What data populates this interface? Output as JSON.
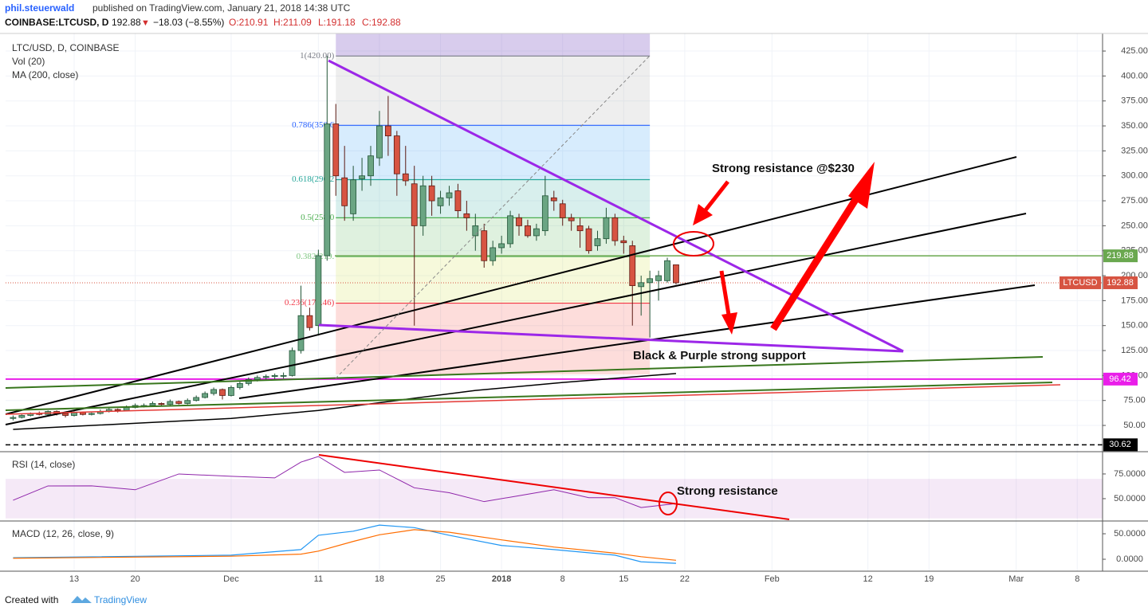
{
  "header": {
    "author": "phil.steuerwald",
    "published": "published on TradingView.com, January 21, 2018 14:38 UTC",
    "symbol": "COINBASE:LTCUSD, D",
    "last": "192.88",
    "arrow": "▼",
    "change": "−18.03 (−8.55%)",
    "open": "O:210.91",
    "high": "H:211.09",
    "low": "L:191.18",
    "close": "C:192.88"
  },
  "footer": {
    "created": "Created with",
    "brand": "TradingView"
  },
  "chart_data": {
    "type": "candlestick",
    "legend": [
      "LTC/USD, D, COINBASE",
      "Vol (20)",
      "MA (200, close)"
    ],
    "xlim": [
      4.14,
      129.9
    ],
    "xticks": [
      {
        "value": 12,
        "label": "13"
      },
      {
        "value": 19,
        "label": "20"
      },
      {
        "value": 30,
        "label": "Dec"
      },
      {
        "value": 40,
        "label": "11"
      },
      {
        "value": 47,
        "label": "18"
      },
      {
        "value": 54,
        "label": "25"
      },
      {
        "value": 61,
        "label": "2018"
      },
      {
        "value": 68,
        "label": "8"
      },
      {
        "value": 75,
        "label": "15"
      },
      {
        "value": 82,
        "label": "22"
      },
      {
        "value": 92,
        "label": "Feb"
      },
      {
        "value": 103,
        "label": "12"
      },
      {
        "value": 110,
        "label": "19"
      },
      {
        "value": 120,
        "label": "Mar"
      },
      {
        "value": 127,
        "label": "8"
      }
    ],
    "ylim": [
      23.7,
      442.6
    ],
    "yticks": [
      {
        "value": 50,
        "label": "50.00"
      },
      {
        "value": 75,
        "label": "75.00"
      },
      {
        "value": 100,
        "label": "100.00"
      },
      {
        "value": 125,
        "label": "125.00"
      },
      {
        "value": 150,
        "label": "150.00"
      },
      {
        "value": 175,
        "label": "175.00"
      },
      {
        "value": 200,
        "label": "200.00"
      },
      {
        "value": 225,
        "label": "225.00"
      },
      {
        "value": 250,
        "label": "250.00"
      },
      {
        "value": 275,
        "label": "275.00"
      },
      {
        "value": 300,
        "label": "300.00"
      },
      {
        "value": 325,
        "label": "325.00"
      },
      {
        "value": 350,
        "label": "350.00"
      },
      {
        "value": 375,
        "label": "375.00"
      },
      {
        "value": 400,
        "label": "400.00"
      },
      {
        "value": 425,
        "label": "425.00"
      }
    ],
    "grid": true,
    "up_color": "#6ba583",
    "down_color": "#d75442",
    "x": [
      5,
      6,
      7,
      8,
      9,
      10,
      11,
      12,
      13,
      14,
      15,
      16,
      17,
      18,
      19,
      20,
      21,
      22,
      23,
      24,
      25,
      26,
      27,
      28,
      29,
      30,
      31,
      32,
      33,
      34,
      35,
      36,
      37,
      38,
      39,
      40,
      41,
      42,
      43,
      44,
      45,
      46,
      47,
      48,
      49,
      50,
      51,
      52,
      53,
      54,
      55,
      56,
      57,
      58,
      59,
      60,
      61,
      62,
      63,
      64,
      65,
      66,
      67,
      68,
      69,
      70,
      71,
      72,
      73,
      74,
      75,
      76,
      77,
      78,
      79,
      80,
      81
    ],
    "candles": [
      [
        57,
        60,
        55,
        58
      ],
      [
        58,
        61,
        57,
        60
      ],
      [
        60,
        63,
        59,
        62
      ],
      [
        62,
        64,
        60,
        61
      ],
      [
        61,
        65,
        60,
        64
      ],
      [
        64,
        65,
        60,
        62
      ],
      [
        62,
        63,
        58,
        60
      ],
      [
        60,
        64,
        59,
        63
      ],
      [
        63,
        64,
        60,
        61
      ],
      [
        61,
        63,
        60,
        62
      ],
      [
        62,
        66,
        61,
        64
      ],
      [
        64,
        68,
        63,
        66
      ],
      [
        66,
        67,
        63,
        65
      ],
      [
        65,
        70,
        64,
        68
      ],
      [
        68,
        72,
        67,
        70
      ],
      [
        70,
        72,
        68,
        70
      ],
      [
        70,
        74,
        69,
        72
      ],
      [
        72,
        73,
        70,
        71
      ],
      [
        71,
        76,
        70,
        74
      ],
      [
        74,
        75,
        71,
        72
      ],
      [
        72,
        77,
        71,
        75
      ],
      [
        75,
        80,
        74,
        78
      ],
      [
        78,
        84,
        77,
        82
      ],
      [
        82,
        88,
        80,
        86
      ],
      [
        86,
        87,
        76,
        80
      ],
      [
        80,
        90,
        79,
        88
      ],
      [
        88,
        94,
        86,
        92
      ],
      [
        92,
        98,
        90,
        96
      ],
      [
        96,
        100,
        94,
        98
      ],
      [
        98,
        101,
        95,
        99
      ],
      [
        99,
        102,
        96,
        100
      ],
      [
        100,
        103,
        97,
        100
      ],
      [
        100,
        128,
        99,
        125
      ],
      [
        125,
        190,
        122,
        160
      ],
      [
        160,
        168,
        145,
        148
      ],
      [
        150,
        226,
        140,
        220
      ],
      [
        220,
        420,
        215,
        352
      ],
      [
        352,
        372,
        280,
        300
      ],
      [
        298,
        330,
        255,
        270
      ],
      [
        262,
        310,
        255,
        296
      ],
      [
        297,
        318,
        285,
        300
      ],
      [
        300,
        330,
        290,
        320
      ],
      [
        318,
        365,
        310,
        350
      ],
      [
        350,
        380,
        320,
        340
      ],
      [
        340,
        345,
        280,
        302
      ],
      [
        302,
        330,
        290,
        295
      ],
      [
        292,
        310,
        150,
        250
      ],
      [
        250,
        300,
        240,
        290
      ],
      [
        290,
        300,
        260,
        275
      ],
      [
        270,
        285,
        262,
        278
      ],
      [
        278,
        290,
        270,
        283
      ],
      [
        285,
        292,
        258,
        265
      ],
      [
        262,
        275,
        245,
        258
      ],
      [
        240,
        262,
        225,
        250
      ],
      [
        245,
        252,
        208,
        215
      ],
      [
        215,
        235,
        210,
        228
      ],
      [
        228,
        240,
        222,
        232
      ],
      [
        232,
        265,
        228,
        260
      ],
      [
        258,
        262,
        240,
        250
      ],
      [
        250,
        256,
        238,
        240
      ],
      [
        240,
        252,
        235,
        247
      ],
      [
        245,
        300,
        240,
        280
      ],
      [
        278,
        285,
        265,
        275
      ],
      [
        272,
        276,
        250,
        258
      ],
      [
        258,
        262,
        245,
        255
      ],
      [
        250,
        258,
        228,
        245
      ],
      [
        247,
        250,
        222,
        225
      ],
      [
        230,
        245,
        225,
        237
      ],
      [
        237,
        268,
        232,
        258
      ],
      [
        258,
        262,
        230,
        235
      ],
      [
        235,
        240,
        222,
        233
      ],
      [
        230,
        235,
        150,
        190
      ],
      [
        189,
        200,
        160,
        193
      ],
      [
        193,
        205,
        138,
        197
      ],
      [
        195,
        205,
        175,
        200
      ],
      [
        195,
        218,
        193,
        215
      ],
      [
        210.91,
        211.09,
        191.18,
        192.88
      ]
    ],
    "ma": {
      "color": "#000000",
      "x": [
        5,
        30,
        40,
        49,
        58,
        68,
        81
      ],
      "values": [
        46,
        57,
        65,
        75,
        85,
        93,
        102
      ]
    },
    "fib": {
      "x": [
        42,
        78
      ],
      "levels": [
        {
          "value": 420,
          "label": "1(420.00)",
          "color": "#787b86"
        },
        {
          "value": 350.6,
          "label": "0.786(350.6",
          "color": "#2962ff"
        },
        {
          "value": 296.2,
          "label": "0.618(296.2",
          "color": "#26a69a"
        },
        {
          "value": 258,
          "label": "0.5(258.0",
          "color": "#4caf50"
        },
        {
          "value": 219,
          "label": "0.382(219.",
          "color": "#81c784"
        },
        {
          "value": 172.46,
          "label": "0.236(172.46)",
          "color": "#f23645"
        }
      ]
    },
    "price_tags": [
      {
        "value": 219.88,
        "color": "#6aa84f"
      },
      {
        "value": 192.88,
        "color": "#d75442",
        "name": "LTCUSD"
      },
      {
        "value": 96.42,
        "color": "#e91ee9"
      },
      {
        "value": 30.62,
        "color": "#000000"
      }
    ],
    "annotations": [
      "Strong resistance @$230",
      "Black & Purple strong support",
      "Strong resistance"
    ],
    "rsi": {
      "title": "RSI (14, close)",
      "color": "#8e24aa",
      "ylim": [
        29,
        93.5
      ],
      "yticks": [
        {
          "value": 50,
          "label": "50.0000"
        },
        {
          "value": 75,
          "label": "75.0000"
        }
      ],
      "x": [
        5,
        9,
        14,
        19,
        24,
        30,
        35,
        38,
        40,
        43,
        47,
        51,
        55,
        59,
        63,
        67,
        71,
        74,
        77,
        81
      ],
      "values": [
        48.4,
        62.9,
        63,
        59,
        75,
        72.6,
        71,
        87,
        92.7,
        76.6,
        79,
        61,
        56,
        47,
        53,
        59,
        51,
        51,
        41,
        45
      ]
    },
    "macd": {
      "title": "MACD (12, 26, close, 9)",
      "ylim": [
        -23.4,
        71.9
      ],
      "yticks": [
        {
          "value": 0,
          "label": "0.0000"
        },
        {
          "value": 50,
          "label": "50.0000"
        }
      ],
      "x": [
        5,
        30,
        38,
        40,
        44,
        47,
        51,
        55,
        61,
        67,
        74,
        77,
        81
      ],
      "series": [
        {
          "color": "#2196f3",
          "values": [
            3,
            8,
            19,
            47,
            55,
            67,
            62,
            47,
            27,
            19,
            8,
            -5,
            -8
          ]
        },
        {
          "color": "#ff6d00",
          "values": [
            2,
            6,
            10,
            16,
            35,
            48,
            58,
            53,
            38,
            24,
            12,
            5,
            -2
          ]
        }
      ]
    }
  }
}
